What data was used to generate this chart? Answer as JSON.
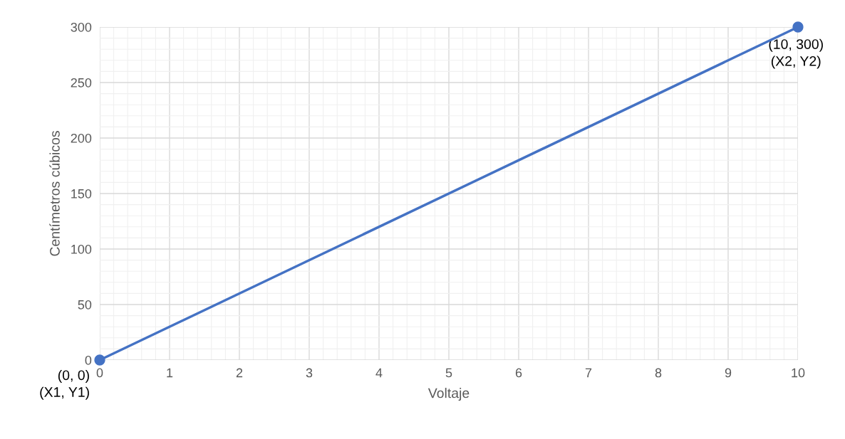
{
  "chart_data": {
    "type": "line",
    "xlabel": "Voltaje",
    "ylabel": "Centímetros cúbicos",
    "series": [
      {
        "color": "#4472c4",
        "x": [
          0,
          10
        ],
        "values": [
          0,
          300
        ]
      }
    ],
    "xlim": [
      0,
      10
    ],
    "xticks": [
      0,
      1,
      2,
      3,
      4,
      5,
      6,
      7,
      8,
      9,
      10
    ],
    "ylim": [
      0,
      300
    ],
    "yticks": [
      0,
      50,
      100,
      150,
      200,
      250,
      300
    ],
    "grid": true,
    "marker": "circle",
    "line_style": "solid",
    "annotations": [
      {
        "text": "(0, 0)\n(X1, Y1)",
        "x": 0,
        "y": 0
      },
      {
        "text": "(10, 300)\n(X2, Y2)",
        "x": 10,
        "y": 300
      }
    ]
  }
}
